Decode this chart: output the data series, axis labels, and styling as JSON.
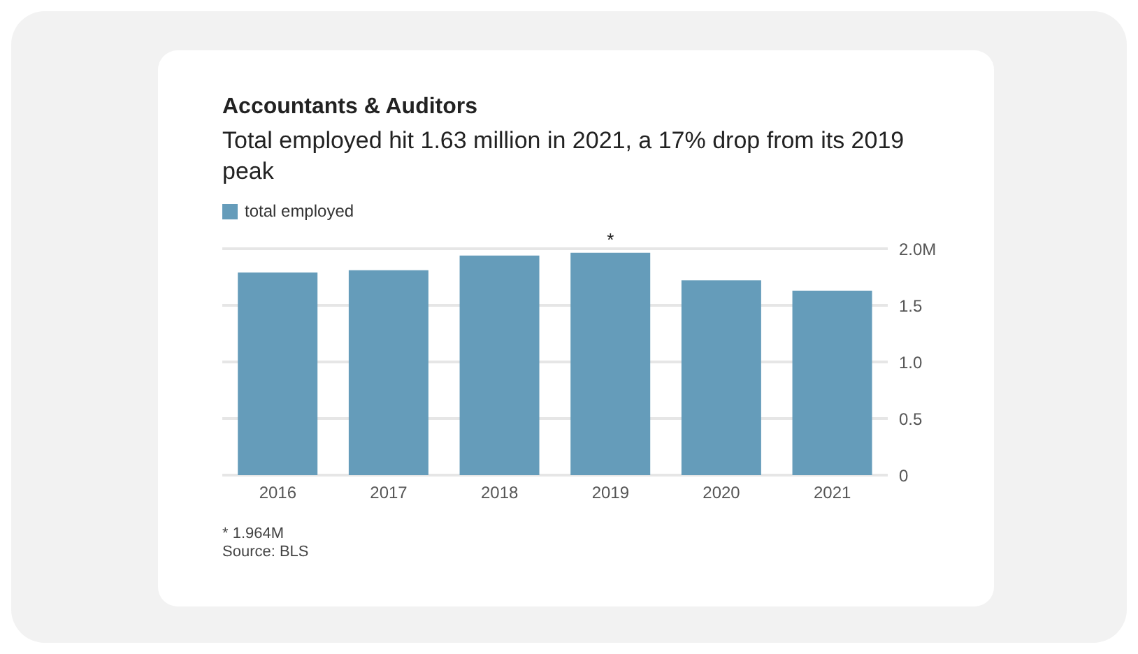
{
  "chart_data": {
    "type": "bar",
    "title": "Accountants & Auditors",
    "subtitle": "Total employed hit 1.63 million in 2021, a 17% drop from its 2019 peak",
    "categories": [
      "2016",
      "2017",
      "2018",
      "2019",
      "2020",
      "2021"
    ],
    "series": [
      {
        "name": "total employed",
        "color": "#659cba",
        "values": [
          1.79,
          1.81,
          1.94,
          1.964,
          1.72,
          1.63
        ]
      }
    ],
    "ylim": [
      0,
      2.0
    ],
    "yticks": [
      0,
      0.5,
      {
        "value": 1,
        "label": "1.0"
      },
      1.5,
      {
        "value": 2,
        "label": "2.0M"
      }
    ],
    "grid": "y",
    "legend": "top left",
    "annotations": [
      {
        "text": "*",
        "x": "2019",
        "y": 1.964
      },
      "* 1.964M",
      "Source: BLS"
    ]
  }
}
